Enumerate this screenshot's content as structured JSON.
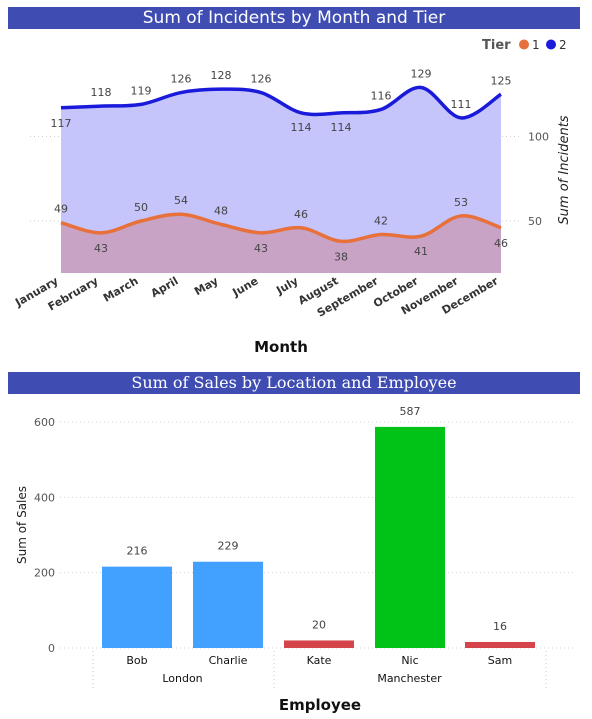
{
  "chart_data": [
    {
      "type": "area",
      "title": "Sum of Incidents by Month and Tier",
      "xlabel": "Month",
      "ylabel": "Sum of Incidents",
      "legend_title": "Tier",
      "legend_position": "top-right",
      "categories": [
        "January",
        "February",
        "March",
        "April",
        "May",
        "June",
        "July",
        "August",
        "September",
        "October",
        "November",
        "December"
      ],
      "yticks": [
        50,
        100
      ],
      "series": [
        {
          "name": "1",
          "color": "#e8703a",
          "fill": "#c9a3c6",
          "values": [
            49,
            43,
            50,
            54,
            48,
            43,
            46,
            38,
            42,
            41,
            53,
            46
          ]
        },
        {
          "name": "2",
          "color": "#1a1adb",
          "fill": "#c5c4fb",
          "values": [
            117,
            118,
            119,
            126,
            128,
            126,
            114,
            114,
            116,
            129,
            111,
            125
          ]
        }
      ],
      "grid": true
    },
    {
      "type": "bar",
      "title": "Sum of Sales by Location and Employee",
      "xlabel": "Employee",
      "ylabel": "Sum of Sales",
      "ylim": [
        0,
        600
      ],
      "yticks": [
        0,
        200,
        400,
        600
      ],
      "groups": [
        {
          "location": "London",
          "employees": [
            {
              "name": "Bob",
              "value": 216,
              "color": "#42a1ff"
            },
            {
              "name": "Charlie",
              "value": 229,
              "color": "#42a1ff"
            }
          ]
        },
        {
          "location": "Manchester",
          "employees": [
            {
              "name": "Kate",
              "value": 20,
              "color": "#d6444b"
            },
            {
              "name": "Nic",
              "value": 587,
              "color": "#00c217"
            },
            {
              "name": "Sam",
              "value": 16,
              "color": "#d6444b"
            }
          ]
        }
      ],
      "grid": true
    }
  ]
}
